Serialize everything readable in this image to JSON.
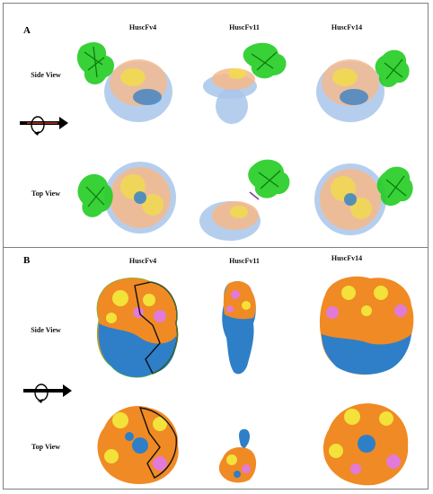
{
  "panels": [
    {
      "letter": "A",
      "columns": [
        "HuscFv4",
        "HuscFv11",
        "HuscFv14"
      ],
      "rows": [
        "Side View",
        "Top View"
      ]
    },
    {
      "letter": "B",
      "columns": [
        "HuscFv4",
        "HuscFv11",
        "HuscFv14"
      ],
      "rows": [
        "Side View",
        "Top View"
      ]
    }
  ],
  "colors": {
    "antibody_ribbon": "#22cc22",
    "surface_orange": "#f08a24",
    "surface_yellow": "#f2e23a",
    "surface_blue": "#2e7fc8",
    "surface_pink": "#e27ad8",
    "transparent_surface_blue": "#a9c6ea",
    "transparent_surface_orange": "#f6b98a",
    "rotation_arrow": "#000000",
    "rotation_arrow_core": "#c0392b"
  }
}
